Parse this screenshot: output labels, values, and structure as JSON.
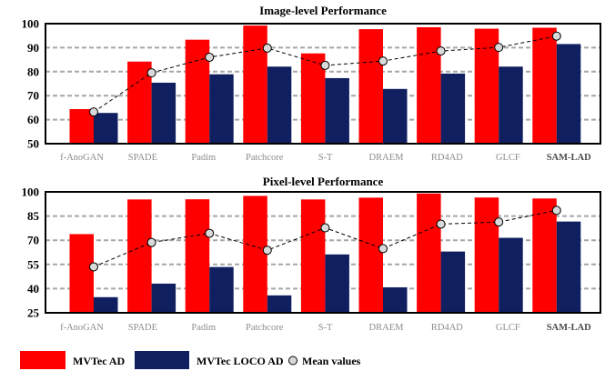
{
  "chart_data": [
    {
      "type": "bar",
      "title": "Image-level Performance",
      "categories": [
        "f-AnoGAN",
        "SPADE",
        "Padim",
        "Patchcore",
        "S-T",
        "DRAEM",
        "RD4AD",
        "GLCF",
        "SAM-LAD"
      ],
      "highlighted_category": "SAM-LAD",
      "ylim": [
        50,
        100
      ],
      "yticks": [
        50,
        60,
        70,
        80,
        90,
        100
      ],
      "grid": true,
      "series": [
        {
          "name": "MVTec AD",
          "type": "bar",
          "color": "#ff0000",
          "values": [
            64.4,
            84.2,
            93.3,
            99.2,
            87.6,
            97.7,
            98.5,
            97.9,
            98.3
          ]
        },
        {
          "name": "MVTec LOCO AD",
          "type": "bar",
          "color": "#0f1f5f",
          "values": [
            62.8,
            75.4,
            78.9,
            82.1,
            77.3,
            72.8,
            79.2,
            82.1,
            91.5
          ]
        },
        {
          "name": "Mean values",
          "type": "line",
          "line_color": "#000000",
          "marker_fill": "#d9d9d9",
          "values": [
            63.2,
            79.5,
            86.0,
            89.8,
            82.6,
            84.4,
            88.6,
            90.1,
            94.8
          ]
        }
      ]
    },
    {
      "type": "bar",
      "title": "Pixel-level Performance",
      "categories": [
        "f-AnoGAN",
        "SPADE",
        "Padim",
        "Patchcore",
        "S-T",
        "DRAEM",
        "RD4AD",
        "GLCF",
        "SAM-LAD"
      ],
      "highlighted_category": "SAM-LAD",
      "ylim": [
        25,
        100
      ],
      "yticks": [
        25,
        40,
        55,
        70,
        85,
        100
      ],
      "grid": true,
      "legend": "bottom",
      "series": [
        {
          "name": "MVTec AD",
          "type": "bar",
          "color": "#ff0000",
          "values": [
            73.8,
            95.3,
            95.4,
            97.5,
            95.3,
            96.4,
            99.0,
            96.5,
            95.9
          ]
        },
        {
          "name": "MVTec LOCO AD",
          "type": "bar",
          "color": "#0f1f5f",
          "values": [
            34.7,
            43.1,
            53.4,
            35.8,
            61.2,
            40.8,
            63.0,
            71.5,
            81.6
          ]
        },
        {
          "name": "Mean values",
          "type": "line",
          "line_color": "#000000",
          "marker_fill": "#d9d9d9",
          "values": [
            53.5,
            68.6,
            74.3,
            63.8,
            77.7,
            64.8,
            80.0,
            81.3,
            88.5
          ]
        }
      ]
    }
  ]
}
